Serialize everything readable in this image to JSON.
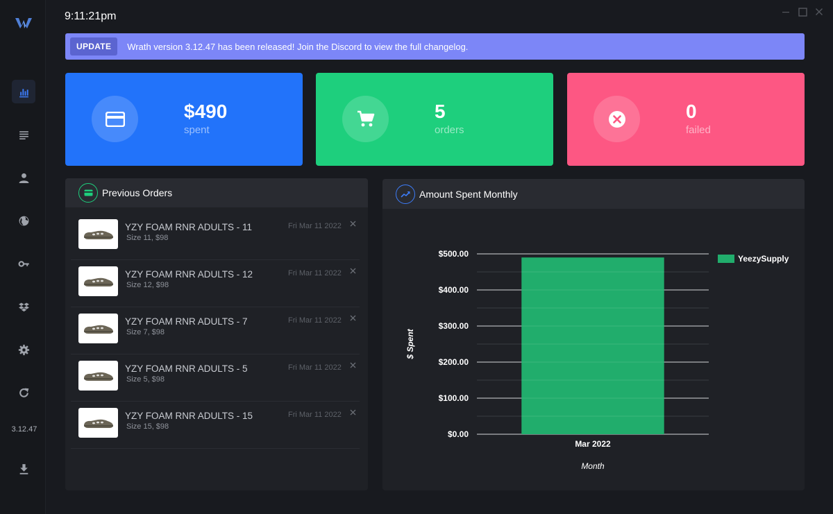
{
  "clock": "9:11:21pm",
  "sidebar": {
    "items": [
      {
        "name": "dashboard"
      },
      {
        "name": "tasks"
      },
      {
        "name": "profiles"
      },
      {
        "name": "proxies"
      },
      {
        "name": "accounts"
      },
      {
        "name": "captcha"
      },
      {
        "name": "settings"
      },
      {
        "name": "refresh"
      }
    ],
    "version": "3.12.47"
  },
  "banner": {
    "badge": "UPDATE",
    "message": "Wrath version 3.12.47 has been released! Join the Discord to view the full changelog."
  },
  "stats": [
    {
      "value": "$490",
      "label": "spent",
      "color": "#2273fa"
    },
    {
      "value": "5",
      "label": "orders",
      "color": "#1ecf7d"
    },
    {
      "value": "0",
      "label": "failed",
      "color": "#fd5783"
    }
  ],
  "orders_panel": {
    "title": "Previous Orders",
    "orders": [
      {
        "name": "YZY FOAM RNR ADULTS - 11",
        "detail": "Size 11, $98",
        "date": "Fri Mar 11 2022"
      },
      {
        "name": "YZY FOAM RNR ADULTS - 12",
        "detail": "Size 12, $98",
        "date": "Fri Mar 11 2022"
      },
      {
        "name": "YZY FOAM RNR ADULTS - 7",
        "detail": "Size 7, $98",
        "date": "Fri Mar 11 2022"
      },
      {
        "name": "YZY FOAM RNR ADULTS - 5",
        "detail": "Size 5, $98",
        "date": "Fri Mar 11 2022"
      },
      {
        "name": "YZY FOAM RNR ADULTS - 15",
        "detail": "Size 15, $98",
        "date": "Fri Mar 11 2022"
      }
    ]
  },
  "chart_panel": {
    "title": "Amount Spent Monthly"
  },
  "chart_data": {
    "type": "bar",
    "categories": [
      "Mar 2022"
    ],
    "series": [
      {
        "name": "YeezySupply",
        "values": [
          490
        ],
        "color": "#21ad6c"
      }
    ],
    "ylim": [
      0,
      500
    ],
    "yticks": [
      0,
      100,
      200,
      300,
      400,
      500
    ],
    "ytick_labels": [
      "$0.00",
      "$100.00",
      "$200.00",
      "$300.00",
      "$400.00",
      "$500.00"
    ],
    "xlabel": "Month",
    "ylabel": "$ Spent",
    "legend_position": "top-right"
  }
}
